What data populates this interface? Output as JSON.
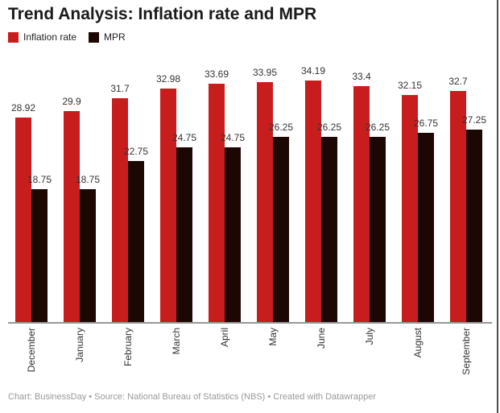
{
  "title": "Trend Analysis: Inflation rate and MPR",
  "legend": [
    {
      "label": "Inflation rate",
      "color": "#c71e1d"
    },
    {
      "label": "MPR",
      "color": "#1c0703"
    }
  ],
  "footer": "Chart: BusinessDay • Source: National Bureau of Statistics (NBS) • Created with Datawrapper",
  "chart_data": {
    "type": "bar",
    "categories": [
      "December",
      "January",
      "February",
      "March",
      "April",
      "May",
      "June",
      "July",
      "August",
      "September"
    ],
    "series": [
      {
        "name": "Inflation rate",
        "color": "#c71e1d",
        "values": [
          28.92,
          29.9,
          31.7,
          32.98,
          33.69,
          33.95,
          34.19,
          33.4,
          32.15,
          32.7
        ]
      },
      {
        "name": "MPR",
        "color": "#1c0703",
        "values": [
          18.75,
          18.75,
          22.75,
          24.75,
          24.75,
          26.25,
          26.25,
          26.25,
          26.75,
          27.25
        ]
      }
    ],
    "title": "Trend Analysis: Inflation rate and MPR",
    "xlabel": "",
    "ylabel": "",
    "ylim": [
      0,
      34.19
    ],
    "grid": false,
    "value_labels": true,
    "legend_position": "top-left",
    "x_tick_rotation": 90
  }
}
